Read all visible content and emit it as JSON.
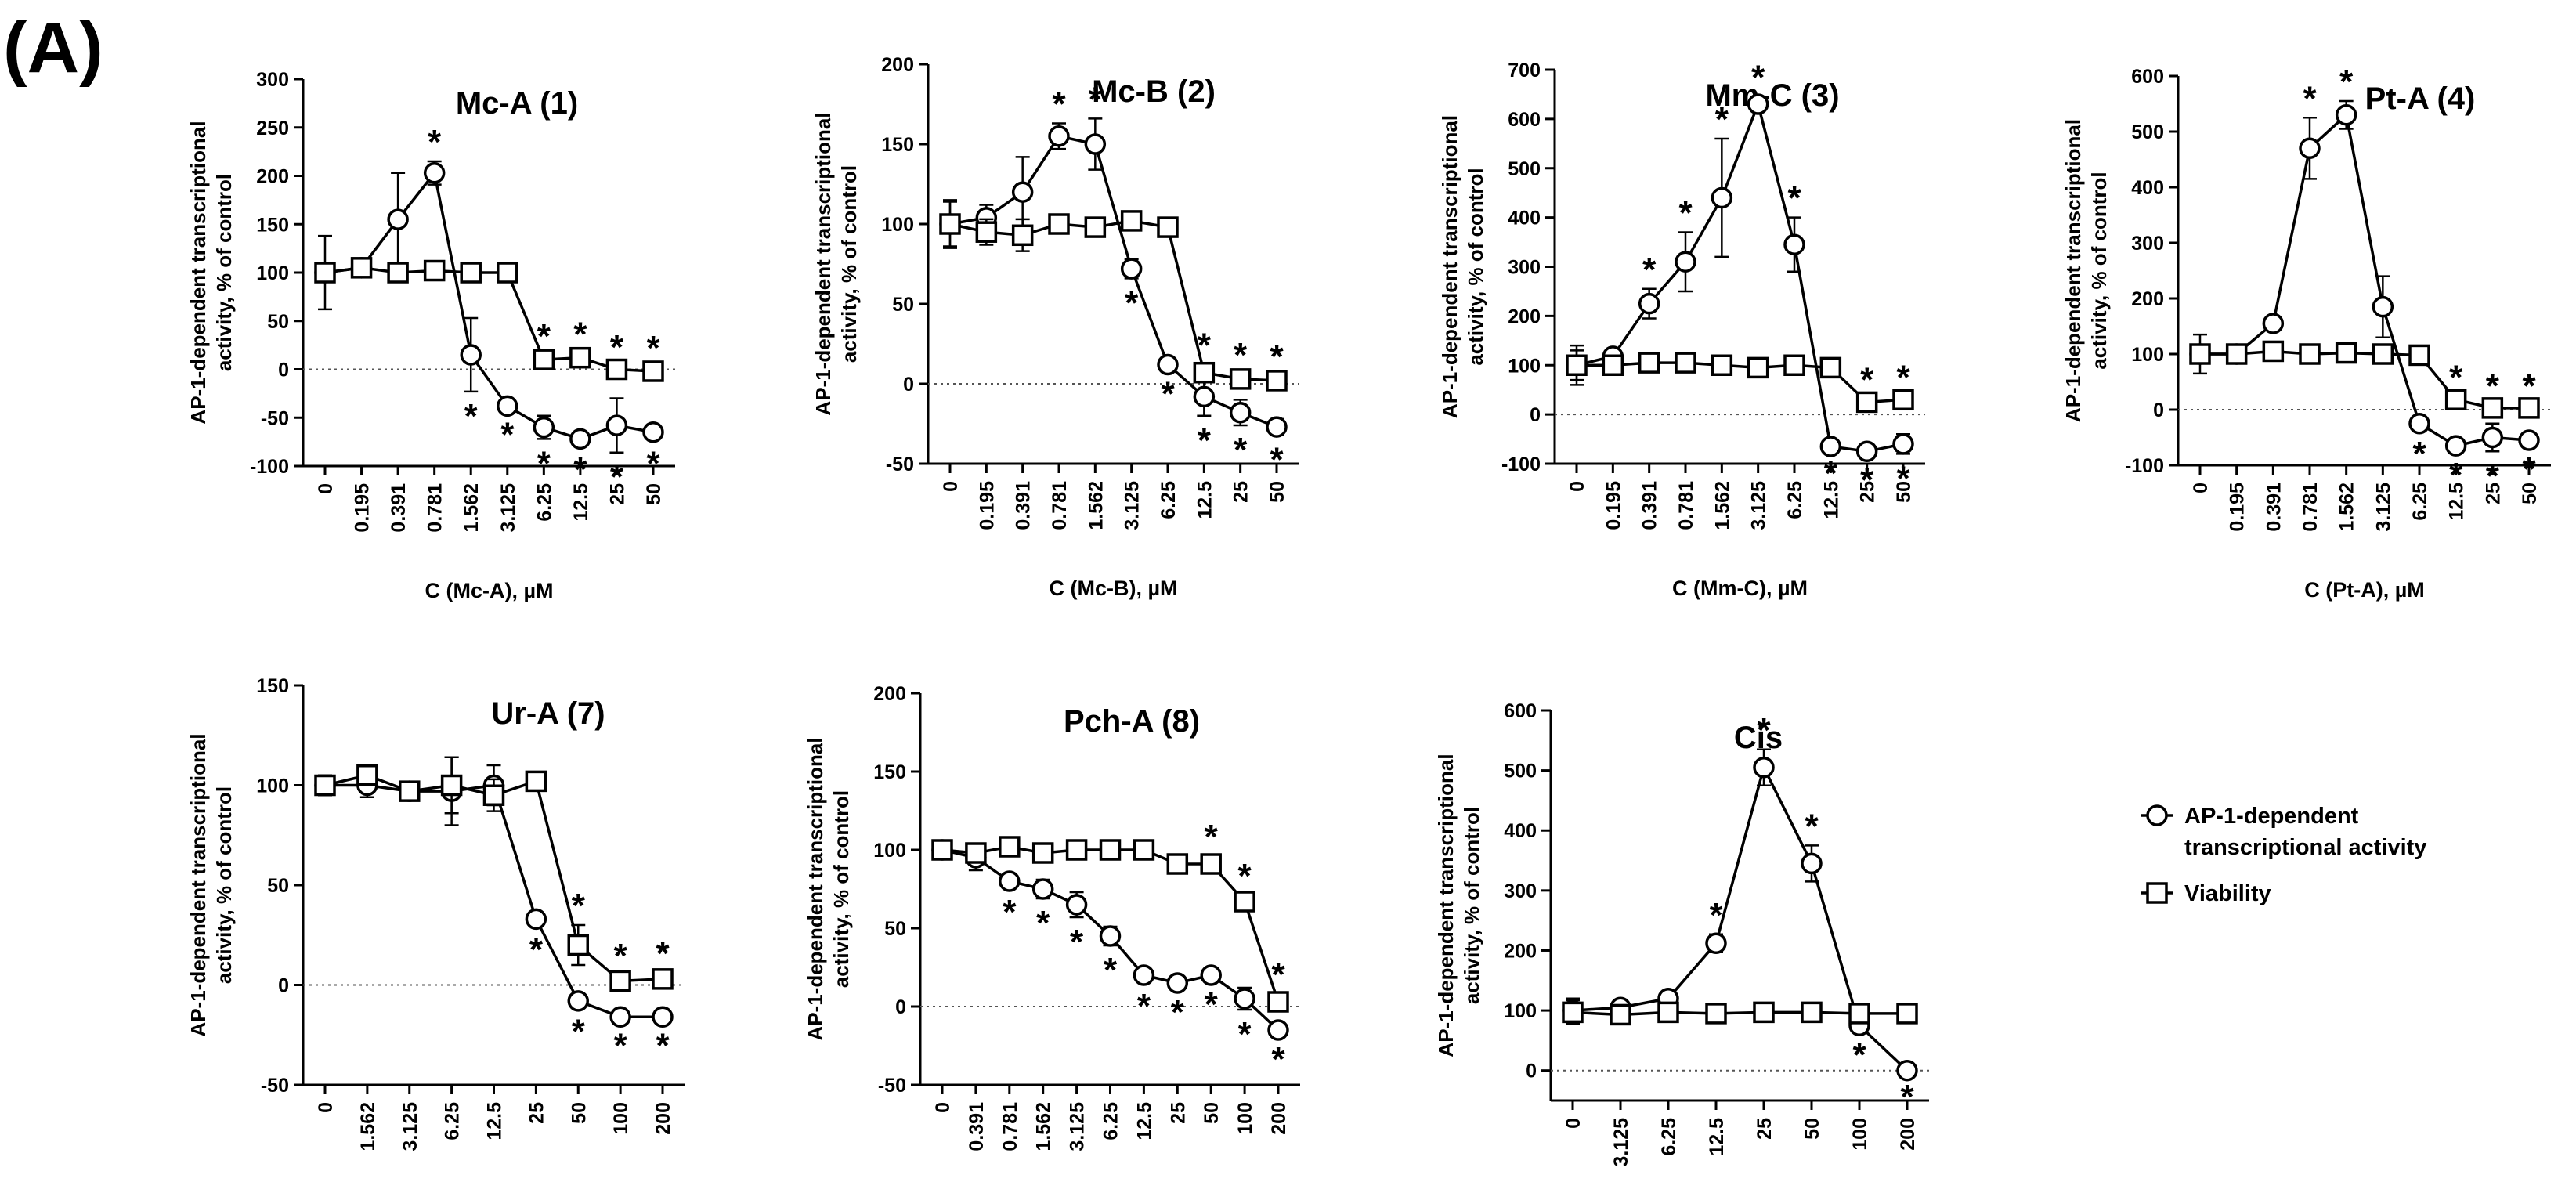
{
  "figure": {
    "panel_label": "(A)",
    "y_axis_label_line1": "AP-1-dependent transcriptional",
    "y_axis_label_line2": "activity, % of control",
    "legend": {
      "series1_line1": "AP-1-dependent",
      "series1_line2": "transcriptional activity",
      "series2": "Viability"
    },
    "significance_marker": "*",
    "colors": {
      "ink": "#000000",
      "background": "#ffffff",
      "zero_line": "#555555"
    }
  },
  "chart_data": [
    {
      "type": "line",
      "title": "Mc-A (1)",
      "xlabel_prefix": "C (Mc-A), ",
      "xlabel_unit": "µM",
      "categories": [
        "0",
        "0.195",
        "0.391",
        "0.781",
        "1.562",
        "3.125",
        "6.25",
        "12.5",
        "25",
        "50"
      ],
      "ylim": [
        -100,
        300
      ],
      "yticks": [
        -100,
        -50,
        0,
        50,
        100,
        150,
        200,
        250,
        300
      ],
      "series": [
        {
          "name": "AP-1-dependent transcriptional activity",
          "marker": "circle",
          "values": [
            100,
            105,
            155,
            203,
            15,
            -38,
            -60,
            -72,
            -58,
            -65
          ],
          "errors": [
            38,
            5,
            48,
            12,
            38,
            4,
            12,
            6,
            28,
            7
          ],
          "significant": [
            false,
            false,
            false,
            true,
            true,
            true,
            true,
            true,
            true,
            true
          ]
        },
        {
          "name": "Viability",
          "marker": "square",
          "values": [
            100,
            105,
            100,
            102,
            100,
            100,
            10,
            12,
            0,
            -2
          ],
          "errors": [
            5,
            4,
            3,
            3,
            3,
            3,
            4,
            4,
            3,
            4
          ],
          "significant": [
            false,
            false,
            false,
            false,
            false,
            false,
            true,
            true,
            true,
            true
          ]
        }
      ]
    },
    {
      "type": "line",
      "title": "Mc-B (2)",
      "xlabel_prefix": "C (Mc-B), ",
      "xlabel_unit": "µM",
      "categories": [
        "0",
        "0.195",
        "0.391",
        "0.781",
        "1.562",
        "3.125",
        "6.25",
        "12.5",
        "25",
        "50"
      ],
      "ylim": [
        -50,
        200
      ],
      "yticks": [
        -50,
        0,
        50,
        100,
        150,
        200
      ],
      "series": [
        {
          "name": "AP-1-dependent transcriptional activity",
          "marker": "circle",
          "values": [
            100,
            104,
            120,
            155,
            150,
            72,
            12,
            -8,
            -18,
            -27
          ],
          "errors": [
            15,
            8,
            22,
            8,
            16,
            6,
            3,
            12,
            8,
            5
          ],
          "significant": [
            false,
            false,
            false,
            true,
            true,
            true,
            true,
            true,
            true,
            true
          ]
        },
        {
          "name": "Viability",
          "marker": "square",
          "values": [
            100,
            95,
            93,
            100,
            98,
            102,
            98,
            7,
            3,
            2
          ],
          "errors": [
            14,
            8,
            10,
            4,
            3,
            3,
            3,
            5,
            3,
            3
          ],
          "significant": [
            false,
            false,
            false,
            false,
            false,
            false,
            false,
            true,
            true,
            true
          ]
        }
      ]
    },
    {
      "type": "line",
      "title": "Mm-C (3)",
      "xlabel_prefix": "C (Mm-C), ",
      "xlabel_unit": "µM",
      "categories": [
        "0",
        "0.195",
        "0.391",
        "0.781",
        "1.562",
        "3.125",
        "6.25",
        "12.5",
        "25",
        "50"
      ],
      "ylim": [
        -100,
        700
      ],
      "yticks": [
        -100,
        0,
        100,
        200,
        300,
        400,
        500,
        600,
        700
      ],
      "series": [
        {
          "name": "AP-1-dependent transcriptional activity",
          "marker": "circle",
          "values": [
            100,
            118,
            225,
            310,
            440,
            630,
            345,
            -65,
            -75,
            -60
          ],
          "errors": [
            40,
            10,
            30,
            60,
            120,
            15,
            55,
            5,
            8,
            20
          ],
          "significant": [
            false,
            false,
            true,
            true,
            true,
            true,
            true,
            true,
            true,
            true
          ]
        },
        {
          "name": "Viability",
          "marker": "square",
          "values": [
            100,
            100,
            105,
            105,
            100,
            95,
            100,
            95,
            25,
            30
          ],
          "errors": [
            30,
            8,
            8,
            6,
            6,
            5,
            5,
            5,
            6,
            6
          ],
          "significant": [
            false,
            false,
            false,
            false,
            false,
            false,
            false,
            false,
            true,
            true
          ]
        }
      ]
    },
    {
      "type": "line",
      "title": "Pt-A (4)",
      "xlabel_prefix": "C (Pt-A), ",
      "xlabel_unit": "µM",
      "categories": [
        "0",
        "0.195",
        "0.391",
        "0.781",
        "1.562",
        "3.125",
        "6.25",
        "12.5",
        "25",
        "50"
      ],
      "ylim": [
        -100,
        600
      ],
      "yticks": [
        -100,
        0,
        100,
        200,
        300,
        400,
        500,
        600
      ],
      "series": [
        {
          "name": "AP-1-dependent transcriptional activity",
          "marker": "circle",
          "values": [
            100,
            100,
            155,
            470,
            530,
            185,
            -25,
            -65,
            -50,
            -55
          ],
          "errors": [
            35,
            10,
            8,
            55,
            25,
            55,
            10,
            8,
            25,
            8
          ],
          "significant": [
            false,
            false,
            false,
            true,
            true,
            false,
            true,
            true,
            true,
            true
          ]
        },
        {
          "name": "Viability",
          "marker": "square",
          "values": [
            100,
            100,
            105,
            100,
            102,
            100,
            98,
            18,
            3,
            3
          ],
          "errors": [
            8,
            6,
            5,
            5,
            5,
            5,
            5,
            5,
            5,
            5
          ],
          "significant": [
            false,
            false,
            false,
            false,
            false,
            false,
            false,
            true,
            true,
            true
          ]
        }
      ]
    },
    {
      "type": "line",
      "title": "Ur-A (7)",
      "xlabel_prefix": "C (Ur-A), ",
      "xlabel_unit": "µM",
      "categories": [
        "0",
        "1.562",
        "3.125",
        "6.25",
        "12.5",
        "25",
        "50",
        "100",
        "200"
      ],
      "ylim": [
        -50,
        150
      ],
      "yticks": [
        -50,
        0,
        50,
        100,
        150
      ],
      "series": [
        {
          "name": "AP-1-dependent transcriptional activity",
          "marker": "circle",
          "values": [
            100,
            100,
            97,
            97,
            100,
            33,
            -8,
            -16,
            -16
          ],
          "errors": [
            5,
            6,
            3,
            17,
            10,
            3,
            3,
            2,
            2
          ],
          "significant": [
            false,
            false,
            false,
            false,
            false,
            true,
            true,
            true,
            true
          ]
        },
        {
          "name": "Viability",
          "marker": "square",
          "values": [
            100,
            105,
            97,
            100,
            95,
            102,
            20,
            2,
            3
          ],
          "errors": [
            5,
            4,
            3,
            14,
            8,
            3,
            10,
            3,
            3
          ],
          "significant": [
            false,
            false,
            false,
            false,
            false,
            false,
            true,
            true,
            true
          ]
        }
      ]
    },
    {
      "type": "line",
      "title": "Pch-A (8)",
      "xlabel_prefix": "C (Pch-A), ",
      "xlabel_unit": "µM",
      "categories": [
        "0",
        "0.391",
        "0.781",
        "1.562",
        "3.125",
        "6.25",
        "12.5",
        "25",
        "50",
        "100",
        "200"
      ],
      "ylim": [
        -50,
        200
      ],
      "yticks": [
        -50,
        0,
        50,
        100,
        150,
        200
      ],
      "series": [
        {
          "name": "AP-1-dependent transcriptional activity",
          "marker": "circle",
          "values": [
            100,
            95,
            80,
            75,
            65,
            45,
            20,
            15,
            20,
            5,
            -15
          ],
          "errors": [
            5,
            8,
            4,
            6,
            8,
            6,
            4,
            3,
            3,
            7,
            3
          ],
          "significant": [
            false,
            false,
            true,
            true,
            true,
            true,
            true,
            true,
            true,
            true,
            true
          ]
        },
        {
          "name": "Viability",
          "marker": "square",
          "values": [
            100,
            98,
            102,
            98,
            100,
            100,
            100,
            91,
            91,
            67,
            3
          ],
          "errors": [
            5,
            4,
            3,
            3,
            3,
            3,
            3,
            4,
            5,
            4,
            5
          ],
          "significant": [
            false,
            false,
            false,
            false,
            false,
            false,
            false,
            false,
            true,
            true,
            true
          ]
        }
      ]
    },
    {
      "type": "line",
      "title": "Cis",
      "xlabel_prefix": "C (Cis), ",
      "xlabel_unit": "µM",
      "categories": [
        "0",
        "3.125",
        "6.25",
        "12.5",
        "25",
        "50",
        "100",
        "200"
      ],
      "ylim": [
        -50,
        600
      ],
      "yticks": [
        0,
        100,
        200,
        300,
        400,
        500,
        600
      ],
      "series": [
        {
          "name": "AP-1-dependent transcriptional activity",
          "marker": "circle",
          "values": [
            100,
            105,
            120,
            212,
            505,
            345,
            75,
            0
          ],
          "errors": [
            20,
            8,
            10,
            15,
            30,
            30,
            8,
            3
          ],
          "significant": [
            false,
            false,
            false,
            true,
            true,
            true,
            true,
            true
          ]
        },
        {
          "name": "Viability",
          "marker": "square",
          "values": [
            97,
            93,
            97,
            95,
            97,
            97,
            95,
            95
          ],
          "errors": [
            20,
            6,
            5,
            5,
            5,
            5,
            5,
            5
          ],
          "significant": [
            false,
            false,
            false,
            false,
            false,
            false,
            false,
            false
          ]
        }
      ]
    }
  ]
}
